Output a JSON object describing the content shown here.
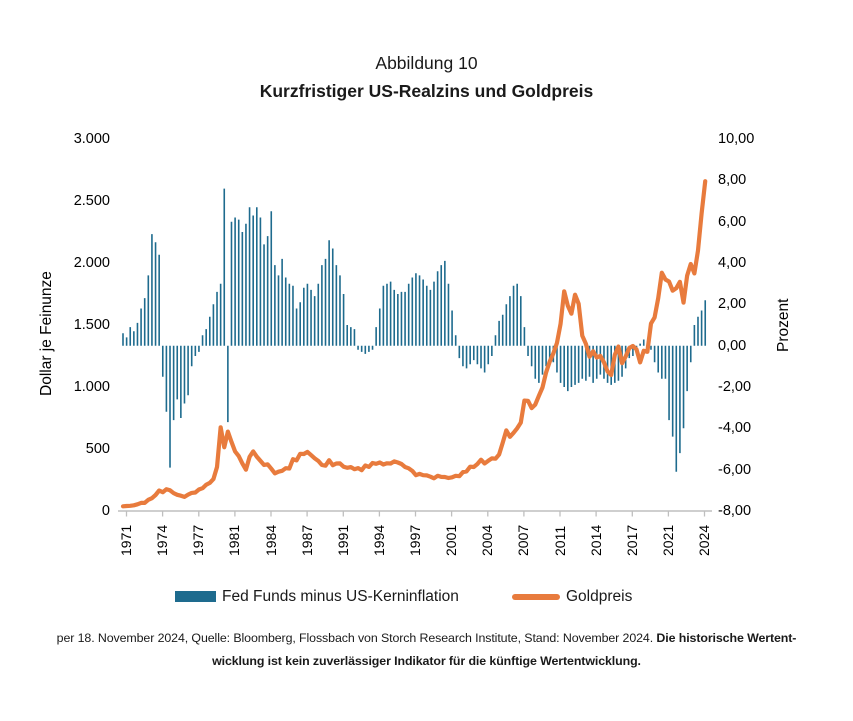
{
  "header": {
    "figure_label": "Abbildung 10",
    "title": "Kurzfristiger US-Realzins und Goldpreis"
  },
  "chart_data": {
    "type": "combo",
    "x": {
      "start": 1971.0,
      "step": 0.3333,
      "unit": "year",
      "tick_labels": [
        "1971",
        "1974",
        "1977",
        "1981",
        "1984",
        "1987",
        "1991",
        "1994",
        "1997",
        "2001",
        "2004",
        "2007",
        "2011",
        "2014",
        "2017",
        "2021",
        "2024"
      ]
    },
    "left_axis": {
      "title": "Dollar je Feinunze",
      "range": [
        0,
        3000
      ],
      "tick_labels": [
        "3.000",
        "2.500",
        "2.000",
        "1.500",
        "1.000",
        "500",
        "0"
      ]
    },
    "right_axis": {
      "title": "Prozent",
      "range": [
        -8,
        10
      ],
      "tick_labels": [
        "10,00",
        "8,00",
        "6,00",
        "4,00",
        "2,00",
        "0,00",
        "-2,00",
        "-4,00",
        "-6,00",
        "-8,00"
      ]
    },
    "grid": false,
    "legend_position": "bottom",
    "series": [
      {
        "name": "Fed Funds minus US-Kerninflation",
        "type": "bar",
        "axis": "right",
        "unit": "Prozent",
        "color": "#1e6b8e",
        "values": [
          0.6,
          0.4,
          0.9,
          0.7,
          1.1,
          1.8,
          2.3,
          3.4,
          5.4,
          5.0,
          4.4,
          -1.5,
          -3.2,
          -5.9,
          -3.6,
          -2.6,
          -3.5,
          -2.8,
          -2.4,
          -1.0,
          -0.5,
          -0.3,
          0.5,
          0.8,
          1.4,
          2.0,
          2.6,
          3.0,
          7.6,
          -3.7,
          6.0,
          6.2,
          6.1,
          5.5,
          5.9,
          6.7,
          6.3,
          6.7,
          6.2,
          4.9,
          5.3,
          6.5,
          3.9,
          3.4,
          4.2,
          3.3,
          3.0,
          2.9,
          1.8,
          2.1,
          2.8,
          3.0,
          2.7,
          2.4,
          3.0,
          3.9,
          4.2,
          5.1,
          4.7,
          3.9,
          3.4,
          2.5,
          1.0,
          0.9,
          0.8,
          -0.2,
          -0.3,
          -0.4,
          -0.3,
          -0.2,
          0.9,
          1.8,
          2.9,
          3.0,
          3.1,
          2.7,
          2.5,
          2.6,
          2.6,
          3.0,
          3.3,
          3.5,
          3.4,
          3.2,
          2.9,
          2.7,
          3.1,
          3.6,
          3.9,
          4.1,
          3.0,
          1.7,
          0.5,
          -0.6,
          -1.0,
          -1.1,
          -0.9,
          -0.7,
          -0.9,
          -1.1,
          -1.3,
          -0.9,
          -0.5,
          0.5,
          1.2,
          1.5,
          2.0,
          2.4,
          2.9,
          3.0,
          2.4,
          0.9,
          -0.5,
          -1.0,
          -1.6,
          -1.8,
          -1.4,
          -1.0,
          -0.9,
          -0.8,
          -1.3,
          -1.8,
          -2.0,
          -2.2,
          -2.0,
          -1.9,
          -1.8,
          -1.6,
          -1.7,
          -1.5,
          -1.8,
          -1.6,
          -1.4,
          -1.6,
          -1.8,
          -1.9,
          -1.8,
          -1.7,
          -1.5,
          -1.1,
          -0.6,
          -0.5,
          -0.2,
          0.1,
          0.3,
          0.2,
          -0.2,
          -0.8,
          -1.3,
          -1.6,
          -1.6,
          -3.6,
          -4.4,
          -6.1,
          -5.2,
          -4.0,
          -2.2,
          -0.8,
          1.0,
          1.4,
          1.7,
          2.2
        ]
      },
      {
        "name": "Goldpreis",
        "type": "line",
        "axis": "left",
        "unit": "Dollar je Feinunze",
        "color": "#e87b3d",
        "values": [
          38,
          40,
          42,
          46,
          54,
          65,
          65,
          90,
          103,
          129,
          165,
          152,
          176,
          167,
          144,
          131,
          123,
          114,
          132,
          146,
          149,
          173,
          184,
          212,
          227,
          257,
          355,
          675,
          514,
          640,
          557,
          480,
          443,
          384,
          333,
          436,
          481,
          438,
          405,
          371,
          377,
          341,
          303,
          317,
          324,
          345,
          343,
          418,
          408,
          461,
          460,
          477,
          451,
          425,
          404,
          371,
          365,
          410,
          369,
          383,
          384,
          357,
          348,
          354,
          337,
          346,
          329,
          367,
          356,
          387,
          381,
          391,
          375,
          385,
          383,
          400,
          391,
          379,
          355,
          344,
          323,
          289,
          299,
          289,
          287,
          277,
          264,
          284,
          275,
          274,
          266,
          272,
          284,
          281,
          314,
          319,
          357,
          355,
          379,
          414,
          383,
          405,
          424,
          422,
          456,
          550,
          650,
          598,
          631,
          667,
          713,
          890,
          889,
          830,
          858,
          929,
          996,
          1118,
          1205,
          1271,
          1356,
          1510,
          1772,
          1656,
          1591,
          1744,
          1671,
          1414,
          1348,
          1244,
          1288,
          1238,
          1251,
          1198,
          1125,
          1097,
          1260,
          1327,
          1192,
          1246,
          1314,
          1331,
          1303,
          1198,
          1292,
          1284,
          1511,
          1561,
          1716,
          1922,
          1867,
          1850,
          1777,
          1797,
          1848,
          1681,
          1898,
          1992,
          1916,
          2100,
          2400,
          2660
        ]
      }
    ]
  },
  "footnote": {
    "source_regular": "per 18. November 2024, Quelle: Bloomberg, Flossbach von Storch Research Institute, Stand: November 2024.",
    "disclaimer_line1": "Die historische Wertent-",
    "disclaimer_line2": "wicklung ist kein zuverlässiger Indikator für die künftige Wertentwicklung."
  },
  "colors": {
    "bar": "#1e6b8e",
    "line": "#e87b3d",
    "axis": "#bfbfbf",
    "text": "#1a1a1a"
  }
}
